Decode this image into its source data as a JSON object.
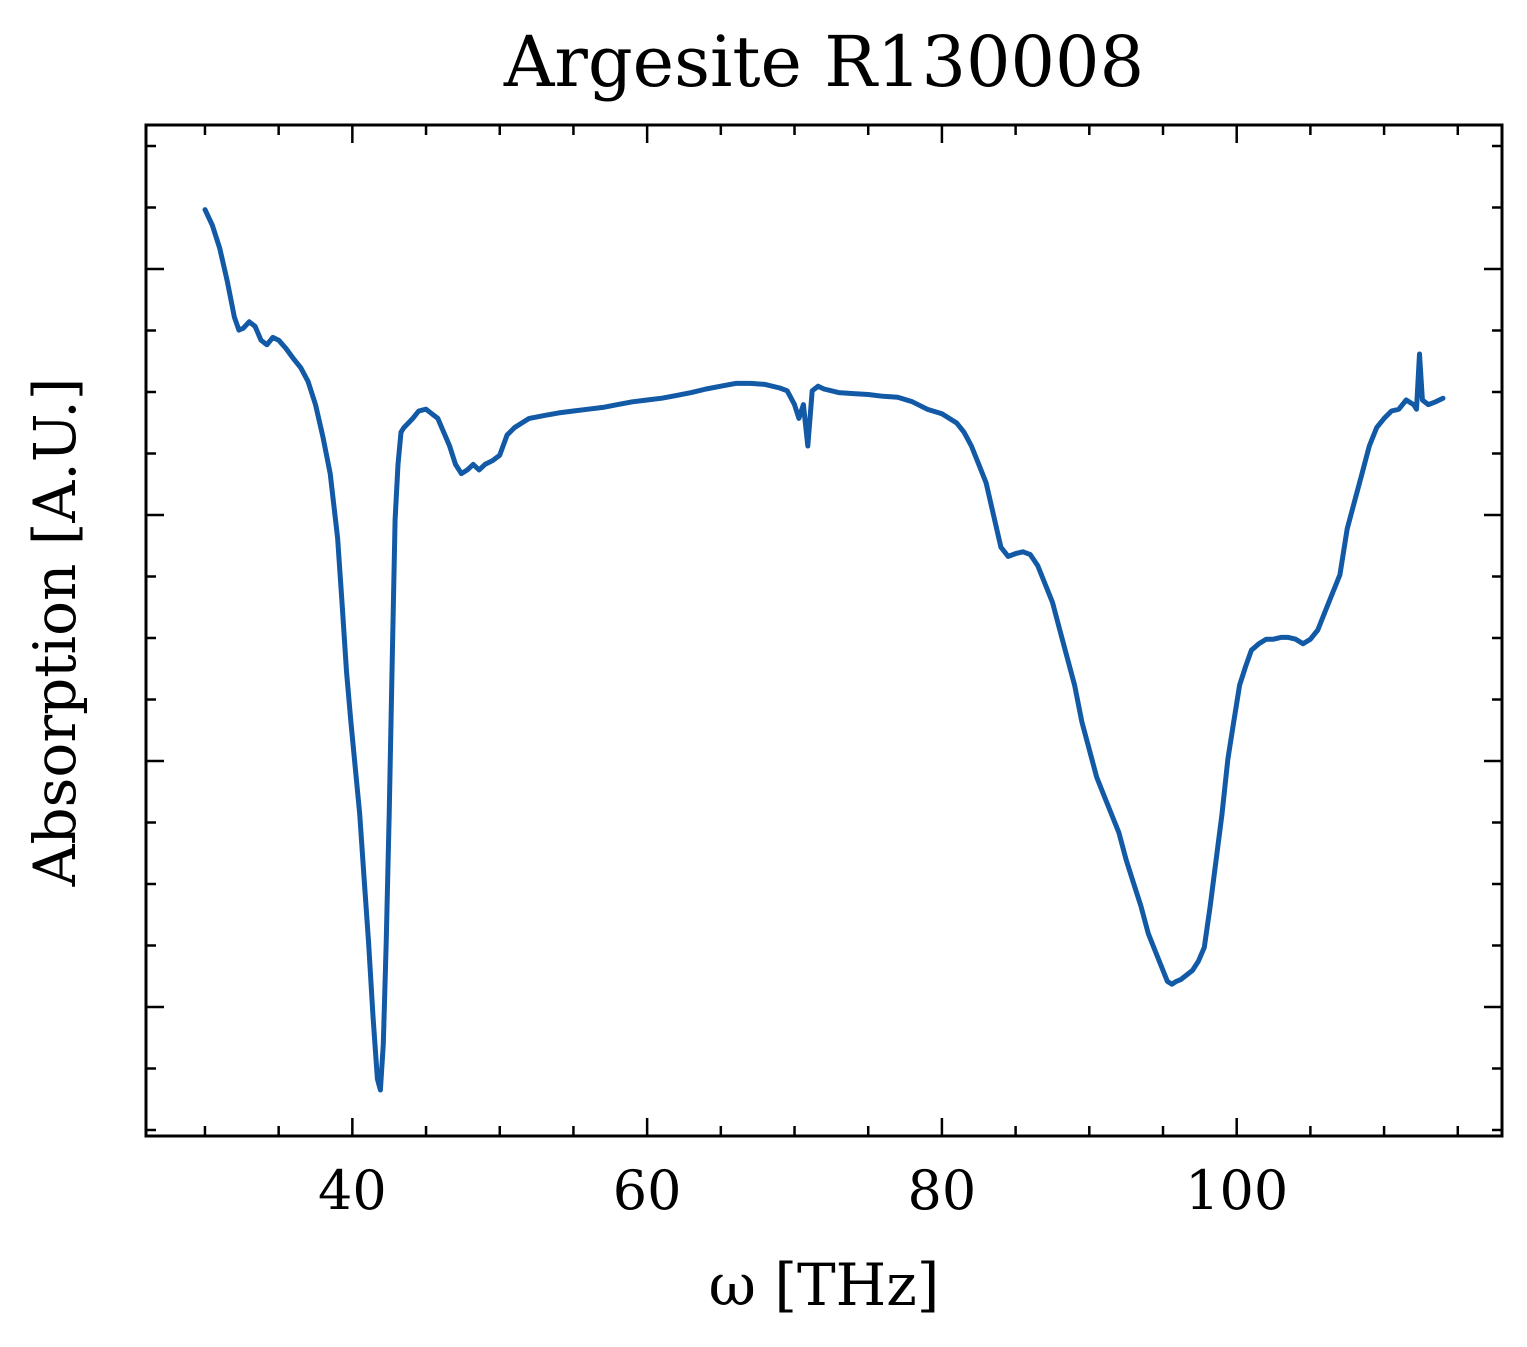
{
  "chart_data": {
    "type": "line",
    "title": "Argesite R130008",
    "xlabel": "ω [THz]",
    "ylabel": "Absorption [A.U.]",
    "xlim": [
      26,
      118
    ],
    "ylim": [
      0,
      1
    ],
    "xticks": [
      {
        "value": 40,
        "label": "40"
      },
      {
        "value": 60,
        "label": "60"
      },
      {
        "value": 80,
        "label": "80"
      },
      {
        "value": 100,
        "label": "100"
      }
    ],
    "yticks_labeled": false,
    "grid": false,
    "legend": "none",
    "colors": {
      "line": "#1259a6",
      "axes": "#000000"
    },
    "series": [
      {
        "x": [
          30.0,
          30.5,
          31.0,
          31.5,
          32.0,
          32.3,
          32.6,
          33.0,
          33.4,
          33.8,
          34.2,
          34.6,
          35.0,
          35.5,
          36.0,
          36.5,
          37.0,
          37.5,
          38.0,
          38.5,
          39.0,
          39.3,
          39.6,
          39.9,
          40.2,
          40.5,
          40.8,
          41.1,
          41.4,
          41.7,
          41.9,
          42.1,
          42.3,
          42.5,
          42.7,
          42.9,
          43.1,
          43.3,
          43.5,
          43.8,
          44.1,
          44.5,
          45.0,
          45.4,
          45.8,
          46.2,
          46.6,
          47.0,
          47.4,
          47.8,
          48.2,
          48.6,
          49.0,
          49.5,
          50.0,
          50.5,
          51.0,
          51.5,
          52.0,
          53.0,
          54.0,
          55.0,
          56.0,
          57.0,
          58.0,
          59.0,
          60.0,
          61.0,
          62.0,
          63.0,
          64.0,
          65.0,
          66.0,
          67.0,
          68.0,
          69.0,
          69.5,
          70.0,
          70.3,
          70.6,
          70.9,
          71.2,
          71.6,
          72.0,
          73.0,
          74.0,
          75.0,
          76.0,
          77.0,
          78.0,
          79.0,
          80.0,
          80.5,
          81.0,
          81.5,
          82.0,
          82.5,
          83.0,
          83.5,
          84.0,
          84.5,
          85.0,
          85.5,
          86.0,
          86.5,
          87.0,
          87.5,
          88.0,
          88.5,
          89.0,
          89.5,
          90.0,
          90.5,
          91.0,
          91.5,
          92.0,
          92.5,
          93.0,
          93.5,
          94.0,
          94.5,
          95.0,
          95.3,
          95.6,
          95.9,
          96.2,
          96.6,
          97.0,
          97.4,
          97.8,
          98.2,
          98.6,
          99.0,
          99.4,
          99.8,
          100.2,
          100.6,
          101.0,
          101.5,
          102.0,
          102.5,
          103.0,
          103.5,
          104.0,
          104.5,
          105.0,
          105.5,
          106.0,
          106.5,
          107.0,
          107.5,
          108.0,
          108.5,
          109.0,
          109.5,
          110.0,
          110.5,
          111.0,
          111.5,
          112.0,
          112.2,
          112.4,
          112.6,
          113.0,
          113.5,
          114.0
        ],
        "y": [
          0.957,
          0.94,
          0.915,
          0.88,
          0.84,
          0.826,
          0.828,
          0.835,
          0.83,
          0.815,
          0.81,
          0.818,
          0.815,
          0.806,
          0.795,
          0.785,
          0.77,
          0.745,
          0.71,
          0.67,
          0.6,
          0.53,
          0.455,
          0.4,
          0.35,
          0.3,
          0.23,
          0.16,
          0.08,
          0.012,
          0.0,
          0.05,
          0.16,
          0.3,
          0.46,
          0.62,
          0.68,
          0.715,
          0.72,
          0.725,
          0.73,
          0.738,
          0.74,
          0.735,
          0.73,
          0.715,
          0.7,
          0.68,
          0.67,
          0.674,
          0.68,
          0.674,
          0.68,
          0.684,
          0.69,
          0.712,
          0.72,
          0.725,
          0.73,
          0.733,
          0.736,
          0.738,
          0.74,
          0.742,
          0.745,
          0.748,
          0.75,
          0.752,
          0.755,
          0.758,
          0.762,
          0.765,
          0.768,
          0.768,
          0.767,
          0.763,
          0.76,
          0.745,
          0.73,
          0.745,
          0.7,
          0.76,
          0.765,
          0.762,
          0.758,
          0.757,
          0.756,
          0.754,
          0.753,
          0.748,
          0.74,
          0.735,
          0.73,
          0.725,
          0.715,
          0.7,
          0.68,
          0.66,
          0.625,
          0.59,
          0.58,
          0.583,
          0.585,
          0.582,
          0.57,
          0.55,
          0.53,
          0.5,
          0.47,
          0.44,
          0.4,
          0.37,
          0.34,
          0.32,
          0.3,
          0.28,
          0.25,
          0.225,
          0.2,
          0.17,
          0.15,
          0.13,
          0.118,
          0.115,
          0.118,
          0.12,
          0.125,
          0.13,
          0.14,
          0.155,
          0.2,
          0.25,
          0.3,
          0.36,
          0.4,
          0.44,
          0.46,
          0.478,
          0.485,
          0.49,
          0.49,
          0.492,
          0.492,
          0.49,
          0.485,
          0.49,
          0.5,
          0.52,
          0.54,
          0.56,
          0.61,
          0.64,
          0.67,
          0.7,
          0.72,
          0.73,
          0.738,
          0.74,
          0.75,
          0.745,
          0.74,
          0.8,
          0.75,
          0.745,
          0.748,
          0.752
        ]
      }
    ]
  }
}
